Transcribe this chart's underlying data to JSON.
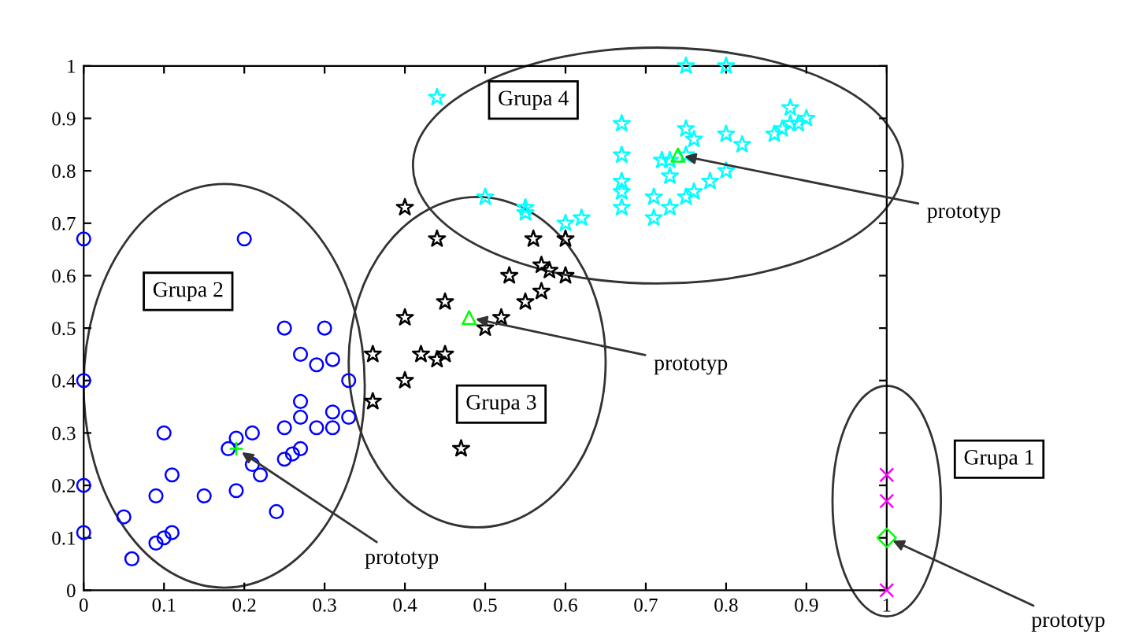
{
  "chart_data": {
    "type": "scatter",
    "xlim": [
      0,
      1
    ],
    "ylim": [
      0,
      1
    ],
    "xticks": [
      {
        "value": 0,
        "label": "0"
      },
      0.1,
      0.2,
      0.3,
      0.4,
      0.5,
      0.6,
      0.7,
      0.8,
      0.9,
      {
        "value": 1,
        "label": "1"
      }
    ],
    "yticks": [
      {
        "value": 0,
        "label": "0"
      },
      0.1,
      0.2,
      0.3,
      0.4,
      0.5,
      0.6,
      0.7,
      0.8,
      0.9,
      {
        "value": 1,
        "label": "1"
      }
    ],
    "grid": false,
    "legend": false,
    "series": [
      {
        "color": "#0000ff",
        "marker": "circle",
        "x": [
          0,
          0.2,
          0,
          0,
          0,
          0.05,
          0.06,
          0.09,
          0.1,
          0.11,
          0.09,
          0.11,
          0.1,
          0.15,
          0.19,
          0.18,
          0.19,
          0.21,
          0.21,
          0.22,
          0.24,
          0.25,
          0.26,
          0.27,
          0.25,
          0.27,
          0.27,
          0.29,
          0.31,
          0.31,
          0.33,
          0.33,
          0.27,
          0.29,
          0.31,
          0.25,
          0.3
        ],
        "values": [
          0.67,
          0.67,
          0.4,
          0.2,
          0.11,
          0.14,
          0.06,
          0.09,
          0.1,
          0.11,
          0.18,
          0.22,
          0.3,
          0.18,
          0.19,
          0.27,
          0.29,
          0.3,
          0.24,
          0.22,
          0.15,
          0.25,
          0.26,
          0.27,
          0.31,
          0.33,
          0.36,
          0.31,
          0.31,
          0.34,
          0.33,
          0.4,
          0.45,
          0.43,
          0.44,
          0.5,
          0.5
        ]
      },
      {
        "color": "#000000",
        "marker": "star",
        "x": [
          0.4,
          0.44,
          0.56,
          0.6,
          0.53,
          0.57,
          0.58,
          0.6,
          0.57,
          0.55,
          0.45,
          0.4,
          0.52,
          0.5,
          0.36,
          0.42,
          0.44,
          0.45,
          0.4,
          0.36,
          0.47
        ],
        "values": [
          0.73,
          0.67,
          0.67,
          0.67,
          0.6,
          0.62,
          0.61,
          0.6,
          0.57,
          0.55,
          0.55,
          0.52,
          0.52,
          0.5,
          0.45,
          0.45,
          0.44,
          0.45,
          0.4,
          0.36,
          0.27
        ]
      },
      {
        "color": "#00ffff",
        "marker": "star",
        "x": [
          0.44,
          0.75,
          0.8,
          0.67,
          0.75,
          0.76,
          0.8,
          0.82,
          0.88,
          0.86,
          0.87,
          0.88,
          0.89,
          0.9,
          0.67,
          0.72,
          0.73,
          0.75,
          0.73,
          0.8,
          0.78,
          0.67,
          0.67,
          0.67,
          0.71,
          0.75,
          0.76,
          0.73,
          0.71,
          0.5,
          0.55,
          0.55,
          0.6,
          0.62
        ],
        "values": [
          0.94,
          1,
          1,
          0.89,
          0.88,
          0.86,
          0.87,
          0.85,
          0.92,
          0.87,
          0.88,
          0.89,
          0.89,
          0.9,
          0.83,
          0.82,
          0.82,
          0.83,
          0.79,
          0.8,
          0.78,
          0.78,
          0.76,
          0.73,
          0.75,
          0.75,
          0.76,
          0.73,
          0.71,
          0.75,
          0.73,
          0.72,
          0.7,
          0.71
        ]
      },
      {
        "color": "#ff00ff",
        "marker": "cross",
        "x": [
          1,
          1,
          1
        ],
        "values": [
          0.22,
          0.17,
          0
        ]
      },
      {
        "color": "#00ff00",
        "marker": "cross",
        "x": [
          0.19
        ],
        "values": [
          0.27
        ]
      },
      {
        "color": "#00ff00",
        "marker": "triangle",
        "x": [
          0.48,
          0.74
        ],
        "values": [
          0.52,
          0.83
        ]
      },
      {
        "color": "#00ff00",
        "marker": "diamond",
        "x": [
          1
        ],
        "values": [
          0.1
        ]
      }
    ],
    "annotations": [
      "Grupa 4",
      "Grupa 2",
      "Grupa 3",
      "Grupa 1",
      {
        "text": "prototyp",
        "x": 0.74,
        "y": 0.83
      },
      {
        "text": "prototyp",
        "x": 0.48,
        "y": 0.52
      },
      {
        "text": "prototyp",
        "x": 0.19,
        "y": 0.27
      },
      {
        "text": "prototyp",
        "x": 1,
        "y": 0.1
      }
    ]
  }
}
